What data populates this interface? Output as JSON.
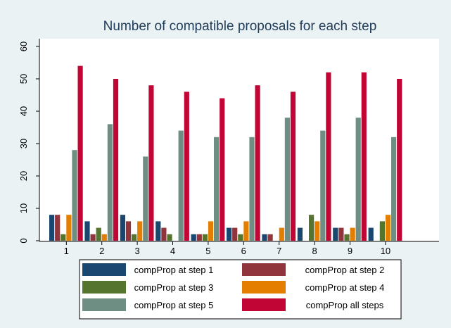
{
  "chart_data": {
    "type": "bar",
    "title": "Number of compatible proposals for each step",
    "xlabel": "",
    "ylabel": "",
    "categories": [
      "1",
      "2",
      "3",
      "4",
      "5",
      "6",
      "7",
      "8",
      "9",
      "10"
    ],
    "ylim": [
      0,
      60
    ],
    "yticks": [
      0,
      10,
      20,
      30,
      40,
      50,
      60
    ],
    "grid": false,
    "legend_position": "bottom",
    "series": [
      {
        "name": "compProp at step 1",
        "color": "#1a476f",
        "values": [
          8,
          6,
          8,
          6,
          2,
          4,
          2,
          4,
          4,
          4
        ]
      },
      {
        "name": "compProp at step 2",
        "color": "#90353b",
        "values": [
          8,
          2,
          6,
          4,
          2,
          4,
          2,
          0,
          4,
          0
        ]
      },
      {
        "name": "compProp at step 3",
        "color": "#55752f",
        "values": [
          2,
          4,
          2,
          2,
          2,
          2,
          0,
          8,
          2,
          6
        ]
      },
      {
        "name": "compProp at step 4",
        "color": "#e37e00",
        "values": [
          8,
          2,
          6,
          0,
          6,
          6,
          4,
          6,
          4,
          8
        ]
      },
      {
        "name": "compProp at step 5",
        "color": "#6e8e84",
        "values": [
          28,
          36,
          26,
          34,
          32,
          32,
          38,
          34,
          38,
          32
        ]
      },
      {
        "name": "compProp all steps",
        "color": "#c10534",
        "values": [
          54,
          50,
          48,
          46,
          44,
          48,
          46,
          52,
          52,
          50
        ]
      }
    ]
  }
}
